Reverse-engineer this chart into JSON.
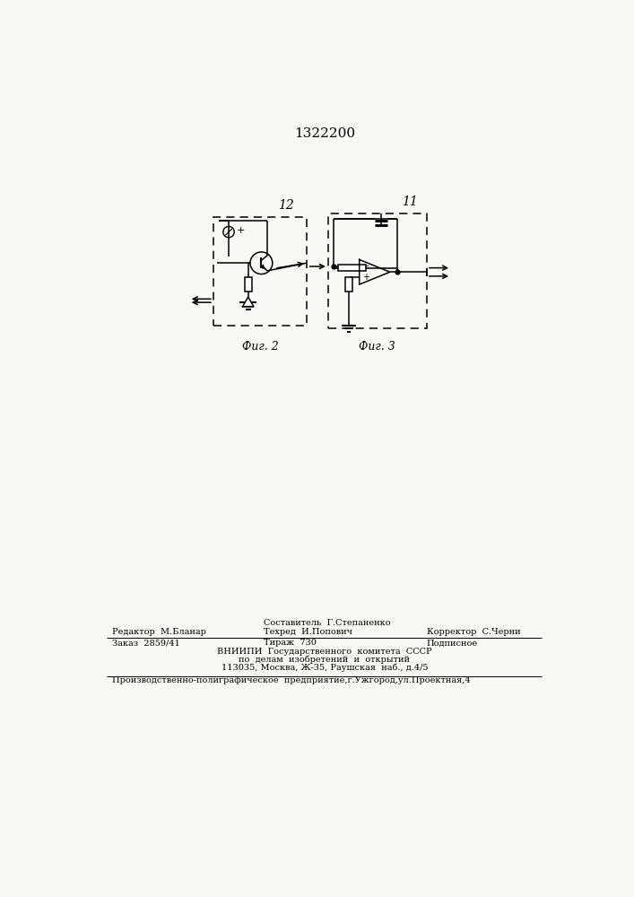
{
  "title": "1322200",
  "bg_color": "#f8f8f6",
  "fig12_label": "12",
  "fig11_label": "11",
  "fig2_caption": "Фиг. 2",
  "fig3_caption": "Фиг. 3",
  "footer_sestavitel": "Составитель  Г.Степаненко",
  "footer_redaktor": "Редактор  М.Бланар",
  "footer_tehred": "Техред  И.Попович",
  "footer_korrektor": "Корректор  С.Черни",
  "footer_zakaz": "Заказ  2859/41",
  "footer_tirazh": "Тираж  730",
  "footer_podpisnoe": "Подписное",
  "footer_vniip1": "ВНИИПИ  Государственного  комитета  СССР",
  "footer_vniip2": "по  делам  изобретений  и  открытий",
  "footer_addr": "113035, Москва, Ж-35, Раушская  наб., д.4/5",
  "footer_bottom": "Производственно-полиграфическое  предприятие,г.Ужгород,ул.Проектная,4"
}
